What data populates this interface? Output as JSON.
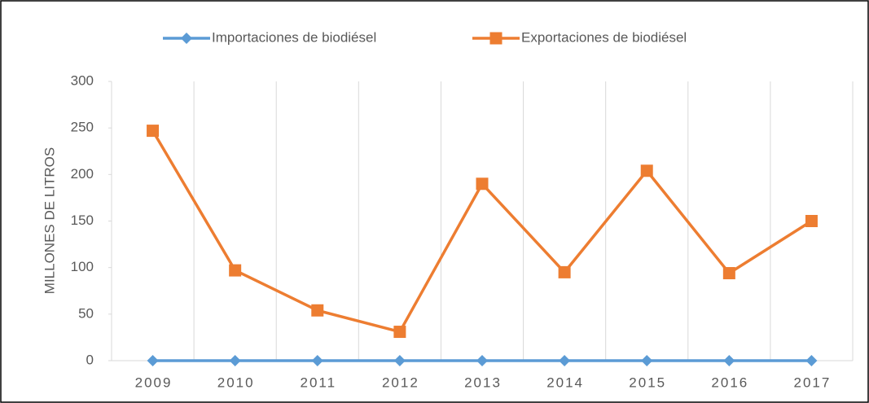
{
  "chart_data": {
    "type": "line",
    "categories": [
      "2009",
      "2010",
      "2011",
      "2012",
      "2013",
      "2014",
      "2015",
      "2016",
      "2017"
    ],
    "series": [
      {
        "name": "Importaciones de biodiésel",
        "color": "#5b9bd5",
        "marker": "diamond",
        "values": [
          0,
          0,
          0,
          0,
          0,
          0,
          0,
          0,
          0
        ]
      },
      {
        "name": "Exportaciones de biodiésel",
        "color": "#ed7d31",
        "marker": "square",
        "values": [
          247,
          97,
          54,
          31,
          190,
          95,
          204,
          94,
          150
        ]
      }
    ],
    "y_label": "MILLONES DE LITROS",
    "ylim": [
      0,
      300
    ],
    "yticks": [
      0,
      50,
      100,
      150,
      200,
      250,
      300
    ],
    "grid": "x",
    "legend": "top"
  }
}
